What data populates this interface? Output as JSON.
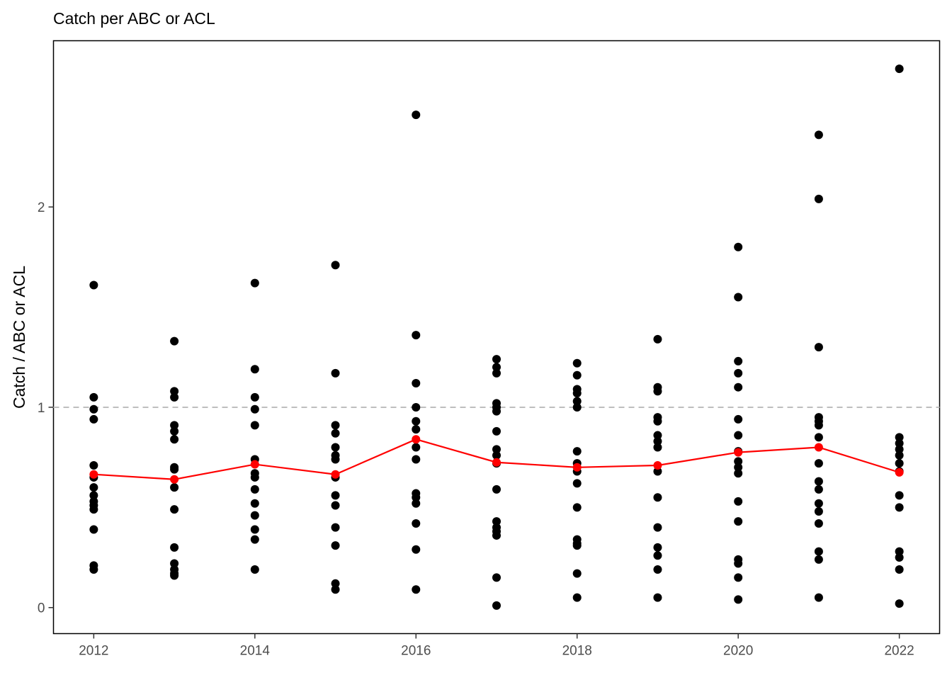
{
  "chart_data": {
    "type": "scatter",
    "title": "Catch per ABC or ACL",
    "xlabel": "",
    "ylabel": "Catch / ABC or ACL",
    "xlim": [
      2011.5,
      2022.5
    ],
    "ylim": [
      -0.13,
      2.83
    ],
    "x_ticks": [
      2012,
      2014,
      2016,
      2018,
      2020,
      2022
    ],
    "y_ticks": [
      0,
      1,
      2
    ],
    "reference_line": {
      "y": 1,
      "style": "dashed",
      "color": "#bebebe"
    },
    "grid": false,
    "legend": "none",
    "series": [
      {
        "kind": "points",
        "color": "#000000",
        "points": [
          {
            "x": 2012,
            "y": 1.61
          },
          {
            "x": 2012,
            "y": 1.05
          },
          {
            "x": 2012,
            "y": 0.99
          },
          {
            "x": 2012,
            "y": 0.94
          },
          {
            "x": 2012,
            "y": 0.71
          },
          {
            "x": 2012,
            "y": 0.65
          },
          {
            "x": 2012,
            "y": 0.6
          },
          {
            "x": 2012,
            "y": 0.56
          },
          {
            "x": 2012,
            "y": 0.53
          },
          {
            "x": 2012,
            "y": 0.51
          },
          {
            "x": 2012,
            "y": 0.49
          },
          {
            "x": 2012,
            "y": 0.39
          },
          {
            "x": 2012,
            "y": 0.21
          },
          {
            "x": 2012,
            "y": 0.19
          },
          {
            "x": 2013,
            "y": 1.33
          },
          {
            "x": 2013,
            "y": 1.08
          },
          {
            "x": 2013,
            "y": 1.05
          },
          {
            "x": 2013,
            "y": 0.91
          },
          {
            "x": 2013,
            "y": 0.88
          },
          {
            "x": 2013,
            "y": 0.84
          },
          {
            "x": 2013,
            "y": 0.7
          },
          {
            "x": 2013,
            "y": 0.69
          },
          {
            "x": 2013,
            "y": 0.6
          },
          {
            "x": 2013,
            "y": 0.49
          },
          {
            "x": 2013,
            "y": 0.3
          },
          {
            "x": 2013,
            "y": 0.22
          },
          {
            "x": 2013,
            "y": 0.19
          },
          {
            "x": 2013,
            "y": 0.17
          },
          {
            "x": 2013,
            "y": 0.16
          },
          {
            "x": 2014,
            "y": 1.62
          },
          {
            "x": 2014,
            "y": 1.19
          },
          {
            "x": 2014,
            "y": 1.05
          },
          {
            "x": 2014,
            "y": 0.99
          },
          {
            "x": 2014,
            "y": 0.91
          },
          {
            "x": 2014,
            "y": 0.74
          },
          {
            "x": 2014,
            "y": 0.67
          },
          {
            "x": 2014,
            "y": 0.65
          },
          {
            "x": 2014,
            "y": 0.59
          },
          {
            "x": 2014,
            "y": 0.52
          },
          {
            "x": 2014,
            "y": 0.46
          },
          {
            "x": 2014,
            "y": 0.39
          },
          {
            "x": 2014,
            "y": 0.34
          },
          {
            "x": 2014,
            "y": 0.19
          },
          {
            "x": 2015,
            "y": 1.71
          },
          {
            "x": 2015,
            "y": 1.17
          },
          {
            "x": 2015,
            "y": 0.91
          },
          {
            "x": 2015,
            "y": 0.87
          },
          {
            "x": 2015,
            "y": 0.8
          },
          {
            "x": 2015,
            "y": 0.76
          },
          {
            "x": 2015,
            "y": 0.74
          },
          {
            "x": 2015,
            "y": 0.65
          },
          {
            "x": 2015,
            "y": 0.56
          },
          {
            "x": 2015,
            "y": 0.51
          },
          {
            "x": 2015,
            "y": 0.4
          },
          {
            "x": 2015,
            "y": 0.31
          },
          {
            "x": 2015,
            "y": 0.12
          },
          {
            "x": 2015,
            "y": 0.09
          },
          {
            "x": 2016,
            "y": 2.46
          },
          {
            "x": 2016,
            "y": 1.36
          },
          {
            "x": 2016,
            "y": 1.12
          },
          {
            "x": 2016,
            "y": 1.0
          },
          {
            "x": 2016,
            "y": 0.93
          },
          {
            "x": 2016,
            "y": 0.89
          },
          {
            "x": 2016,
            "y": 0.8
          },
          {
            "x": 2016,
            "y": 0.74
          },
          {
            "x": 2016,
            "y": 0.57
          },
          {
            "x": 2016,
            "y": 0.55
          },
          {
            "x": 2016,
            "y": 0.52
          },
          {
            "x": 2016,
            "y": 0.42
          },
          {
            "x": 2016,
            "y": 0.29
          },
          {
            "x": 2016,
            "y": 0.09
          },
          {
            "x": 2017,
            "y": 1.24
          },
          {
            "x": 2017,
            "y": 1.2
          },
          {
            "x": 2017,
            "y": 1.17
          },
          {
            "x": 2017,
            "y": 1.02
          },
          {
            "x": 2017,
            "y": 1.0
          },
          {
            "x": 2017,
            "y": 0.98
          },
          {
            "x": 2017,
            "y": 0.88
          },
          {
            "x": 2017,
            "y": 0.79
          },
          {
            "x": 2017,
            "y": 0.76
          },
          {
            "x": 2017,
            "y": 0.72
          },
          {
            "x": 2017,
            "y": 0.59
          },
          {
            "x": 2017,
            "y": 0.43
          },
          {
            "x": 2017,
            "y": 0.4
          },
          {
            "x": 2017,
            "y": 0.38
          },
          {
            "x": 2017,
            "y": 0.36
          },
          {
            "x": 2017,
            "y": 0.15
          },
          {
            "x": 2017,
            "y": 0.01
          },
          {
            "x": 2018,
            "y": 1.22
          },
          {
            "x": 2018,
            "y": 1.16
          },
          {
            "x": 2018,
            "y": 1.09
          },
          {
            "x": 2018,
            "y": 1.07
          },
          {
            "x": 2018,
            "y": 1.03
          },
          {
            "x": 2018,
            "y": 1.0
          },
          {
            "x": 2018,
            "y": 0.78
          },
          {
            "x": 2018,
            "y": 0.72
          },
          {
            "x": 2018,
            "y": 0.68
          },
          {
            "x": 2018,
            "y": 0.62
          },
          {
            "x": 2018,
            "y": 0.5
          },
          {
            "x": 2018,
            "y": 0.34
          },
          {
            "x": 2018,
            "y": 0.32
          },
          {
            "x": 2018,
            "y": 0.31
          },
          {
            "x": 2018,
            "y": 0.17
          },
          {
            "x": 2018,
            "y": 0.05
          },
          {
            "x": 2019,
            "y": 1.34
          },
          {
            "x": 2019,
            "y": 1.1
          },
          {
            "x": 2019,
            "y": 1.08
          },
          {
            "x": 2019,
            "y": 0.95
          },
          {
            "x": 2019,
            "y": 0.93
          },
          {
            "x": 2019,
            "y": 0.86
          },
          {
            "x": 2019,
            "y": 0.83
          },
          {
            "x": 2019,
            "y": 0.8
          },
          {
            "x": 2019,
            "y": 0.68
          },
          {
            "x": 2019,
            "y": 0.55
          },
          {
            "x": 2019,
            "y": 0.4
          },
          {
            "x": 2019,
            "y": 0.3
          },
          {
            "x": 2019,
            "y": 0.26
          },
          {
            "x": 2019,
            "y": 0.19
          },
          {
            "x": 2019,
            "y": 0.05
          },
          {
            "x": 2020,
            "y": 1.8
          },
          {
            "x": 2020,
            "y": 1.55
          },
          {
            "x": 2020,
            "y": 1.23
          },
          {
            "x": 2020,
            "y": 1.17
          },
          {
            "x": 2020,
            "y": 1.1
          },
          {
            "x": 2020,
            "y": 0.94
          },
          {
            "x": 2020,
            "y": 0.86
          },
          {
            "x": 2020,
            "y": 0.78
          },
          {
            "x": 2020,
            "y": 0.73
          },
          {
            "x": 2020,
            "y": 0.7
          },
          {
            "x": 2020,
            "y": 0.67
          },
          {
            "x": 2020,
            "y": 0.53
          },
          {
            "x": 2020,
            "y": 0.43
          },
          {
            "x": 2020,
            "y": 0.24
          },
          {
            "x": 2020,
            "y": 0.22
          },
          {
            "x": 2020,
            "y": 0.15
          },
          {
            "x": 2020,
            "y": 0.04
          },
          {
            "x": 2021,
            "y": 2.36
          },
          {
            "x": 2021,
            "y": 2.04
          },
          {
            "x": 2021,
            "y": 1.3
          },
          {
            "x": 2021,
            "y": 0.95
          },
          {
            "x": 2021,
            "y": 0.93
          },
          {
            "x": 2021,
            "y": 0.91
          },
          {
            "x": 2021,
            "y": 0.85
          },
          {
            "x": 2021,
            "y": 0.72
          },
          {
            "x": 2021,
            "y": 0.63
          },
          {
            "x": 2021,
            "y": 0.59
          },
          {
            "x": 2021,
            "y": 0.52
          },
          {
            "x": 2021,
            "y": 0.48
          },
          {
            "x": 2021,
            "y": 0.42
          },
          {
            "x": 2021,
            "y": 0.28
          },
          {
            "x": 2021,
            "y": 0.24
          },
          {
            "x": 2021,
            "y": 0.05
          },
          {
            "x": 2022,
            "y": 2.69
          },
          {
            "x": 2022,
            "y": 0.85
          },
          {
            "x": 2022,
            "y": 0.82
          },
          {
            "x": 2022,
            "y": 0.79
          },
          {
            "x": 2022,
            "y": 0.76
          },
          {
            "x": 2022,
            "y": 0.72
          },
          {
            "x": 2022,
            "y": 0.68
          },
          {
            "x": 2022,
            "y": 0.56
          },
          {
            "x": 2022,
            "y": 0.5
          },
          {
            "x": 2022,
            "y": 0.28
          },
          {
            "x": 2022,
            "y": 0.25
          },
          {
            "x": 2022,
            "y": 0.19
          },
          {
            "x": 2022,
            "y": 0.02
          }
        ]
      },
      {
        "kind": "line",
        "color": "#ff0000",
        "x": [
          2012,
          2013,
          2014,
          2015,
          2016,
          2017,
          2018,
          2019,
          2020,
          2021,
          2022
        ],
        "y": [
          0.665,
          0.64,
          0.715,
          0.665,
          0.84,
          0.725,
          0.7,
          0.71,
          0.775,
          0.8,
          0.675
        ]
      }
    ]
  }
}
